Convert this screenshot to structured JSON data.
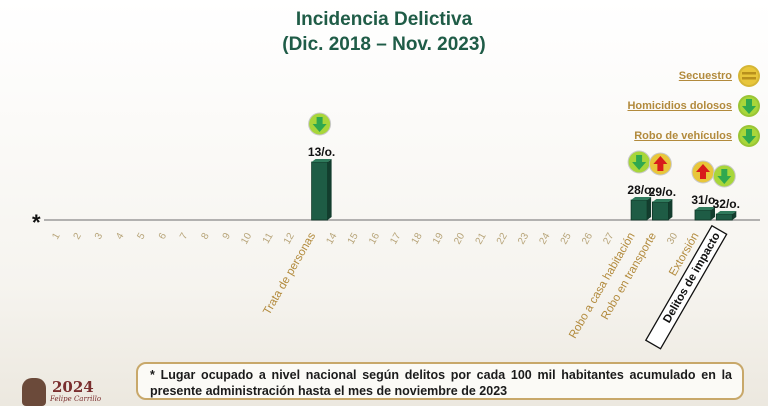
{
  "header": {
    "title": "Incidencia Delictiva",
    "subtitle": "(Dic. 2018 – Nov. 2023)"
  },
  "legend": [
    {
      "label": "Secuestro",
      "icon": "equal-icon",
      "color": "#e8c63a"
    },
    {
      "label": "Homicidios dolosos",
      "icon": "arrow-down-icon",
      "color": "#a8d63a"
    },
    {
      "label": "Robo de vehículos",
      "icon": "arrow-down-icon",
      "color": "#a8d63a"
    }
  ],
  "chart_data": {
    "type": "bar",
    "axis_marker": "*",
    "ticks": [
      "1",
      "2",
      "3",
      "4",
      "5",
      "6",
      "7",
      "8",
      "9",
      "10",
      "11",
      "12",
      "Trata de personas",
      "14",
      "15",
      "16",
      "17",
      "18",
      "19",
      "20",
      "21",
      "22",
      "23",
      "24",
      "25",
      "26",
      "27",
      "Robo a casa habitación",
      "Robo en transporte",
      "30",
      "Extorsión",
      "Delitos de impacto"
    ],
    "bars": [
      {
        "category": "Trata de personas",
        "position": 13,
        "value": 13,
        "label": "13/o.",
        "trend": "down"
      },
      {
        "category": "Robo a casa habitación",
        "position": 28,
        "value": 28,
        "label": "28/o.",
        "trend": "down"
      },
      {
        "category": "Robo en transporte",
        "position": 29,
        "value": 29,
        "label": "29/o.",
        "trend": "up"
      },
      {
        "category": "Extorsión",
        "position": 31,
        "value": 31,
        "label": "31/o.",
        "trend": "up"
      },
      {
        "category": "Delitos de impacto",
        "position": 32,
        "value": 32,
        "label": "32/o.",
        "trend": "down"
      }
    ],
    "colors": {
      "bar": "#1e5c45",
      "down": "#a8d63a",
      "up": "#e8c63a",
      "arrow_up": "#d81b1b",
      "arrow_down": "#2fa84f"
    }
  },
  "note": {
    "text": "* Lugar ocupado a nivel nacional según delitos por cada 100 mil habitantes acumulado en la presente administración hasta el mes de noviembre de 2023"
  },
  "logo": {
    "text": "2024",
    "subtext": "Felipe Carrillo"
  }
}
